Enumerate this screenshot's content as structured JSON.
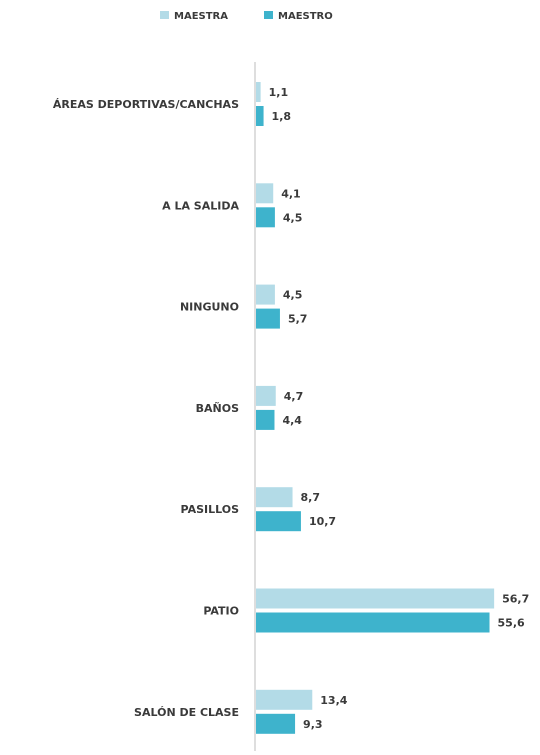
{
  "chart_data": {
    "type": "bar",
    "orientation": "horizontal",
    "categories": [
      "ÁREAS DEPORTIVAS/CANCHAS",
      "A LA SALIDA",
      "NINGUNO",
      "BAÑOS",
      "PASILLOS",
      "PATIO",
      "SALÓN DE CLASE"
    ],
    "series": [
      {
        "name": "MAESTRA",
        "color": "#b3dbe7",
        "values": [
          1.1,
          4.1,
          4.5,
          4.7,
          8.7,
          56.7,
          13.4
        ],
        "labels": [
          "1,1",
          "4,1",
          "4,5",
          "4,7",
          "8,7",
          "56,7",
          "13,4"
        ]
      },
      {
        "name": "MAESTRO",
        "color": "#3eb3cc",
        "values": [
          1.8,
          4.5,
          5.7,
          4.4,
          10.7,
          55.6,
          9.3
        ],
        "labels": [
          "1,8",
          "4,5",
          "5,7",
          "4,4",
          "10,7",
          "55,6",
          "9,3"
        ]
      }
    ],
    "legend": "top-center",
    "grid": false,
    "xlim": [
      0,
      60
    ]
  }
}
